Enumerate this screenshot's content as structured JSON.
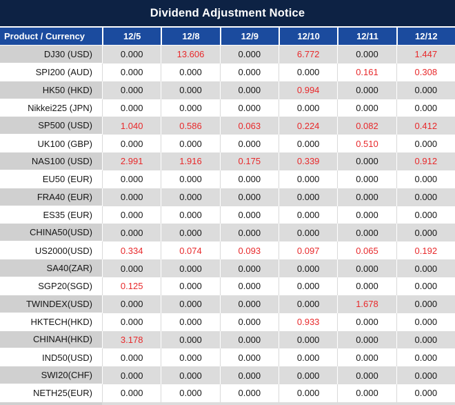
{
  "title": "Dividend Adjustment Notice",
  "colors": {
    "title_bg": "#0d2244",
    "header_bg": "#1b4b9e",
    "row_gray": "#dcdcdc",
    "label_gray": "#d0d0d0",
    "red": "#e8282a",
    "text": "#151515"
  },
  "table": {
    "label_header": "Product / Currency",
    "date_headers": [
      "12/5",
      "12/8",
      "12/9",
      "12/10",
      "12/11",
      "12/12"
    ],
    "rows": [
      {
        "product": "DJ30 (USD)",
        "values": [
          "0.000",
          "13.606",
          "0.000",
          "6.772",
          "0.000",
          "1.447"
        ],
        "red": [
          false,
          true,
          false,
          true,
          false,
          true
        ]
      },
      {
        "product": "SPI200 (AUD)",
        "values": [
          "0.000",
          "0.000",
          "0.000",
          "0.000",
          "0.161",
          "0.308"
        ],
        "red": [
          false,
          false,
          false,
          false,
          true,
          true
        ]
      },
      {
        "product": "HK50 (HKD)",
        "values": [
          "0.000",
          "0.000",
          "0.000",
          "0.994",
          "0.000",
          "0.000"
        ],
        "red": [
          false,
          false,
          false,
          true,
          false,
          false
        ]
      },
      {
        "product": "Nikkei225 (JPN)",
        "values": [
          "0.000",
          "0.000",
          "0.000",
          "0.000",
          "0.000",
          "0.000"
        ],
        "red": [
          false,
          false,
          false,
          false,
          false,
          false
        ]
      },
      {
        "product": "SP500 (USD)",
        "values": [
          "1.040",
          "0.586",
          "0.063",
          "0.224",
          "0.082",
          "0.412"
        ],
        "red": [
          true,
          true,
          true,
          true,
          true,
          true
        ]
      },
      {
        "product": "UK100 (GBP)",
        "values": [
          "0.000",
          "0.000",
          "0.000",
          "0.000",
          "0.510",
          "0.000"
        ],
        "red": [
          false,
          false,
          false,
          false,
          true,
          false
        ]
      },
      {
        "product": "NAS100 (USD)",
        "values": [
          "2.991",
          "1.916",
          "0.175",
          "0.339",
          "0.000",
          "0.912"
        ],
        "red": [
          true,
          true,
          true,
          true,
          false,
          true
        ]
      },
      {
        "product": "EU50 (EUR)",
        "values": [
          "0.000",
          "0.000",
          "0.000",
          "0.000",
          "0.000",
          "0.000"
        ],
        "red": [
          false,
          false,
          false,
          false,
          false,
          false
        ]
      },
      {
        "product": "FRA40 (EUR)",
        "values": [
          "0.000",
          "0.000",
          "0.000",
          "0.000",
          "0.000",
          "0.000"
        ],
        "red": [
          false,
          false,
          false,
          false,
          false,
          false
        ]
      },
      {
        "product": "ES35 (EUR)",
        "values": [
          "0.000",
          "0.000",
          "0.000",
          "0.000",
          "0.000",
          "0.000"
        ],
        "red": [
          false,
          false,
          false,
          false,
          false,
          false
        ]
      },
      {
        "product": "CHINA50(USD)",
        "values": [
          "0.000",
          "0.000",
          "0.000",
          "0.000",
          "0.000",
          "0.000"
        ],
        "red": [
          false,
          false,
          false,
          false,
          false,
          false
        ]
      },
      {
        "product": "US2000(USD)",
        "values": [
          "0.334",
          "0.074",
          "0.093",
          "0.097",
          "0.065",
          "0.192"
        ],
        "red": [
          true,
          true,
          true,
          true,
          true,
          true
        ]
      },
      {
        "product": "SA40(ZAR)",
        "values": [
          "0.000",
          "0.000",
          "0.000",
          "0.000",
          "0.000",
          "0.000"
        ],
        "red": [
          false,
          false,
          false,
          false,
          false,
          false
        ]
      },
      {
        "product": "SGP20(SGD)",
        "values": [
          "0.125",
          "0.000",
          "0.000",
          "0.000",
          "0.000",
          "0.000"
        ],
        "red": [
          true,
          false,
          false,
          false,
          false,
          false
        ]
      },
      {
        "product": "TWINDEX(USD)",
        "values": [
          "0.000",
          "0.000",
          "0.000",
          "0.000",
          "1.678",
          "0.000"
        ],
        "red": [
          false,
          false,
          false,
          false,
          true,
          false
        ]
      },
      {
        "product": "HKTECH(HKD)",
        "values": [
          "0.000",
          "0.000",
          "0.000",
          "0.933",
          "0.000",
          "0.000"
        ],
        "red": [
          false,
          false,
          false,
          true,
          false,
          false
        ]
      },
      {
        "product": "CHINAH(HKD)",
        "values": [
          "3.178",
          "0.000",
          "0.000",
          "0.000",
          "0.000",
          "0.000"
        ],
        "red": [
          true,
          false,
          false,
          false,
          false,
          false
        ]
      },
      {
        "product": "IND50(USD)",
        "values": [
          "0.000",
          "0.000",
          "0.000",
          "0.000",
          "0.000",
          "0.000"
        ],
        "red": [
          false,
          false,
          false,
          false,
          false,
          false
        ]
      },
      {
        "product": "SWI20(CHF)",
        "values": [
          "0.000",
          "0.000",
          "0.000",
          "0.000",
          "0.000",
          "0.000"
        ],
        "red": [
          false,
          false,
          false,
          false,
          false,
          false
        ]
      },
      {
        "product": "NETH25(EUR)",
        "values": [
          "0.000",
          "0.000",
          "0.000",
          "0.000",
          "0.000",
          "0.000"
        ],
        "red": [
          false,
          false,
          false,
          false,
          false,
          false
        ]
      }
    ]
  }
}
